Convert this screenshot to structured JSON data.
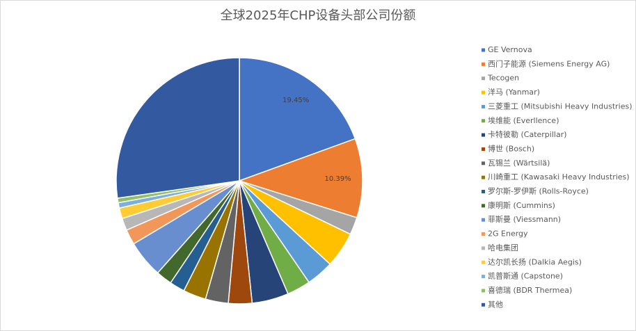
{
  "chart_data": {
    "type": "pie",
    "title": "全球2025年CHP设备头部公司份额",
    "categories": [
      "GE Vernova",
      "西门子能源 (Siemens Energy AG)",
      "Tecogen",
      "洋马 (Yanmar)",
      "三菱重工 (Mitsubishi Heavy Industries)",
      "埃维能 (Everllence)",
      "卡特彼勒 (Caterpillar)",
      "博世 (Bosch)",
      "瓦锡兰 (Wärtsilä)",
      "川崎重工 (Kawasaki Heavy Industries)",
      "罗尔斯-罗伊斯 (Rolls-Royce)",
      "康明斯 (Cummins)",
      "菲斯曼 (Viessmann)",
      "2G Energy",
      "哈电集团",
      "达尔凯长扬 (Dalkia Aegis)",
      "凯普斯通 (Capstone)",
      "喜德瑞 (BDR Thermea)",
      "其他"
    ],
    "values": [
      19.45,
      10.39,
      2.3,
      4.7,
      3.6,
      3.1,
      4.8,
      3.1,
      3.0,
      3.0,
      2.0,
      2.1,
      4.9,
      2.0,
      1.6,
      1.4,
      0.7,
      0.6,
      27.26
    ],
    "value_labels": [
      "19.45%",
      "10.39%",
      null,
      null,
      null,
      null,
      null,
      null,
      null,
      null,
      null,
      null,
      null,
      null,
      null,
      null,
      null,
      null,
      null
    ],
    "colors": [
      "#4472c4",
      "#ed7d31",
      "#a5a5a5",
      "#ffc000",
      "#5b9bd5",
      "#70ad47",
      "#264478",
      "#9e480e",
      "#636363",
      "#997300",
      "#255e91",
      "#43682b",
      "#698ed0",
      "#f1975a",
      "#b7b7b7",
      "#ffcd33",
      "#7cafdd",
      "#8cc168",
      "#335aa1"
    ],
    "legend": "right"
  }
}
